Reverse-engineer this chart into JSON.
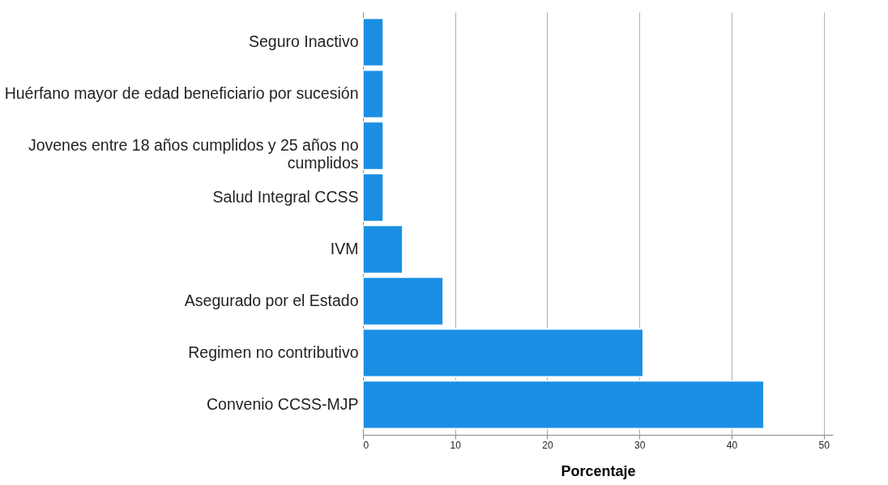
{
  "chart_data": {
    "type": "bar",
    "orientation": "horizontal",
    "xlabel": "Porcentaje",
    "categories": [
      "Seguro Inactivo",
      "Huérfano mayor de edad beneficiario por sucesión",
      "Jovenes entre 18 años cumplidos y 25 años no cumplidos",
      "Salud Integral CCSS",
      "IVM",
      "Asegurado por el Estado",
      "Regimen no contributivo",
      "Convenio CCSS-MJP"
    ],
    "values": [
      2.2,
      2.2,
      2.2,
      2.2,
      4.3,
      8.7,
      30.4,
      43.5
    ],
    "color": "#1a8fe3",
    "xlim": [
      0,
      51
    ],
    "xticks": [
      0,
      10,
      20,
      30,
      40,
      50
    ],
    "grid": "x"
  }
}
